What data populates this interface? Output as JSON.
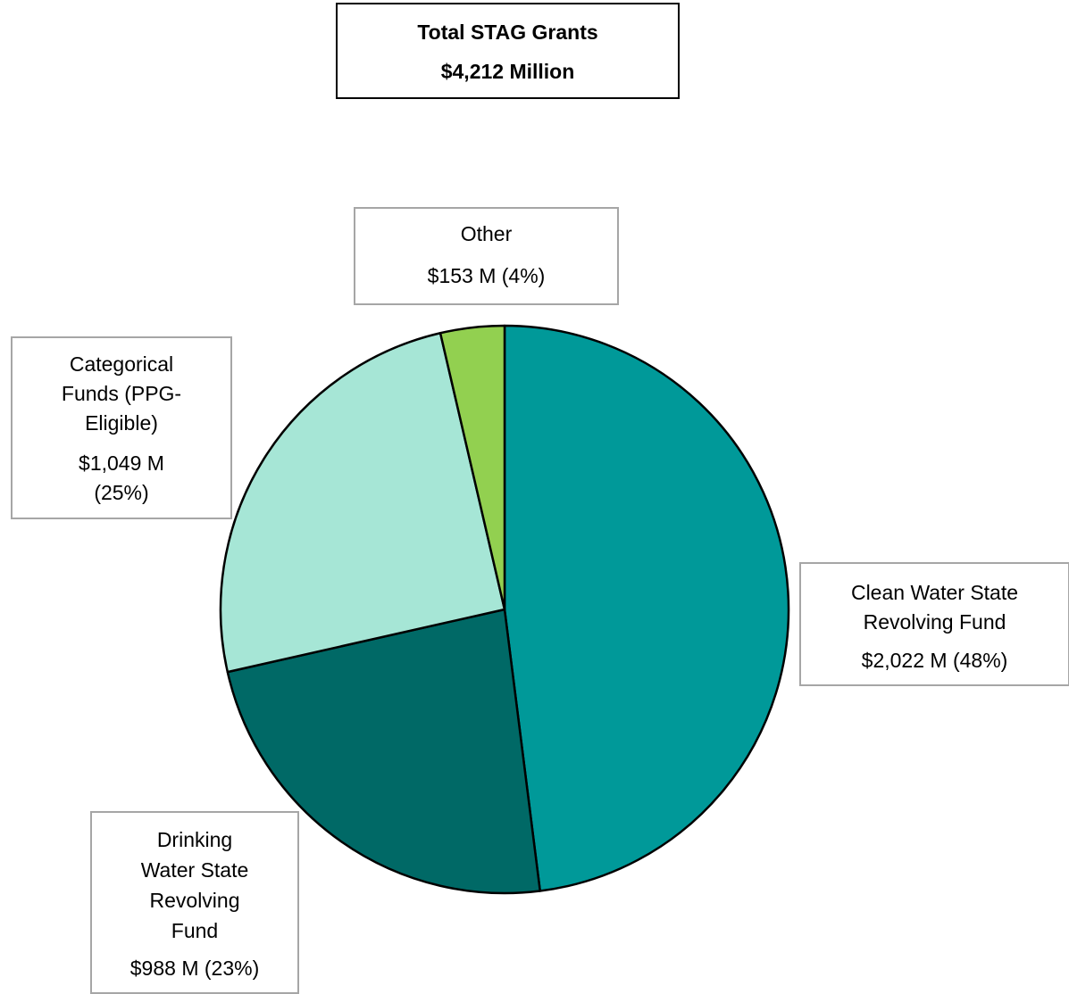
{
  "header": {
    "title": "Total STAG Grants",
    "total": "$4,212 Million"
  },
  "chart_data": {
    "type": "pie",
    "start_angle_deg": 0,
    "direction": "clockwise",
    "slices": [
      {
        "id": "cw",
        "name_lines": [
          "Clean Water State",
          "Revolving Fund"
        ],
        "value_label": "$2,022 M  (48%)",
        "value": 2022,
        "percent": 48,
        "color": "#009999"
      },
      {
        "id": "dw",
        "name_lines": [
          "Drinking",
          "Water State",
          "Revolving",
          "Fund"
        ],
        "value_label": "$988 M  (23%)",
        "value": 988,
        "percent": 23,
        "color": "#006966"
      },
      {
        "id": "categorical",
        "name_lines": [
          "Categorical",
          "Funds  (PPG-",
          "Eligible)"
        ],
        "value_lines": [
          "$1,049 M",
          "(25%)"
        ],
        "value": 1049,
        "percent": 25,
        "color": "#a6e6d6"
      },
      {
        "id": "other",
        "name_lines": [
          "Other"
        ],
        "value_label": "$153 M  (4%)",
        "value": 153,
        "percent": 4,
        "color": "#92d050"
      }
    ]
  }
}
